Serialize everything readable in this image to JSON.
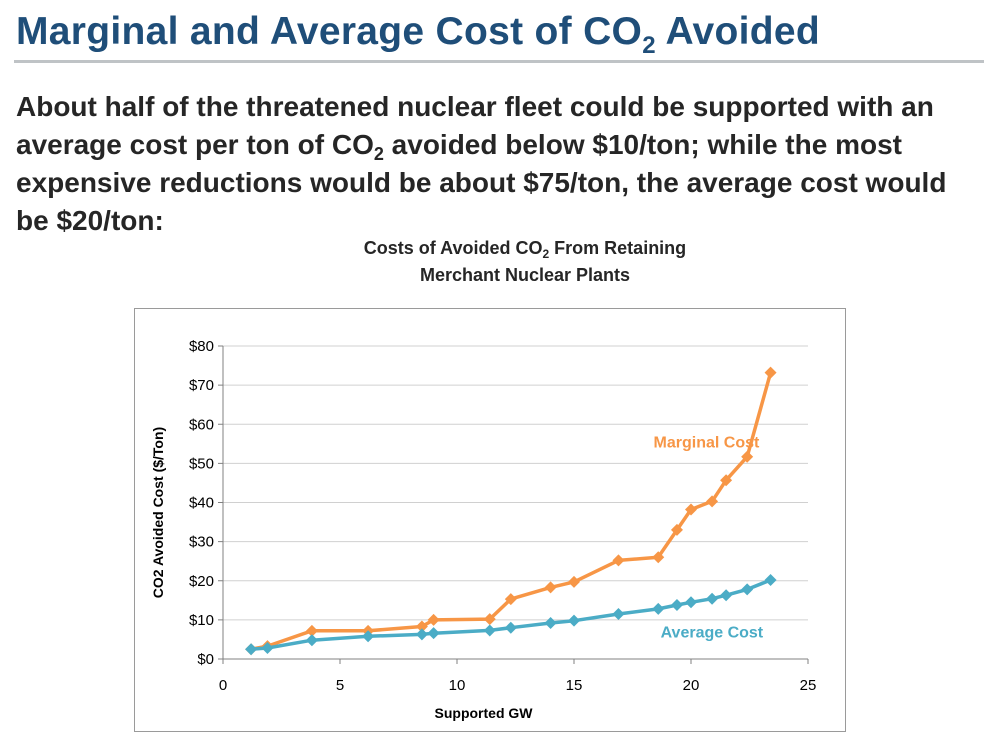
{
  "slide": {
    "title_main": "Marginal and Average Cost of CO",
    "title_sub": "2",
    "title_end": " Avoided",
    "body_part1": "About half of the threatened nuclear fleet could be supported with an average cost per ton of CO",
    "body_sub": "2",
    "body_part2": " avoided below $10/ton;  while the most expensive reductions would be about $75/ton, the average cost would be $20/ton:"
  },
  "chart_data": {
    "type": "line",
    "title_line1_main": "Costs of Avoided CO",
    "title_line1_sub": "2",
    "title_line1_end": " From Retaining",
    "title_line2": "Merchant Nuclear Plants",
    "xlabel": "Supported GW",
    "ylabel": "CO2 Avoided Cost ($/Ton)",
    "xlim": [
      0,
      25
    ],
    "ylim": [
      0,
      80
    ],
    "xticks": [
      0,
      5,
      10,
      15,
      20,
      25
    ],
    "xtick_labels": [
      "0",
      "5",
      "10",
      "15",
      "20",
      "25"
    ],
    "yticks": [
      0,
      10,
      20,
      30,
      40,
      50,
      60,
      70,
      80
    ],
    "ytick_labels": [
      "$0",
      "$10",
      "$20",
      "$30",
      "$40",
      "$50",
      "$60",
      "$70",
      "$80"
    ],
    "grid": "horizontal",
    "series": [
      {
        "name": "Marginal Cost",
        "color": "#f79646",
        "marker": "diamond",
        "x": [
          1.2,
          1.9,
          3.8,
          6.2,
          8.5,
          9.0,
          11.4,
          12.3,
          14.0,
          15.0,
          16.9,
          18.6,
          19.4,
          20.0,
          20.9,
          21.5,
          22.4,
          23.4
        ],
        "y": [
          2.5,
          3.3,
          7.2,
          7.2,
          8.3,
          10.0,
          10.2,
          15.3,
          18.3,
          19.7,
          25.2,
          26.0,
          33.0,
          38.2,
          40.3,
          45.7,
          51.7,
          73.2
        ]
      },
      {
        "name": "Average Cost",
        "color": "#4bacc6",
        "marker": "diamond",
        "x": [
          1.2,
          1.9,
          3.8,
          6.2,
          8.5,
          9.0,
          11.4,
          12.3,
          14.0,
          15.0,
          16.9,
          18.6,
          19.4,
          20.0,
          20.9,
          21.5,
          22.4,
          23.4
        ],
        "y": [
          2.5,
          2.8,
          4.8,
          5.8,
          6.3,
          6.6,
          7.3,
          8.0,
          9.2,
          9.8,
          11.5,
          12.8,
          13.8,
          14.5,
          15.4,
          16.3,
          17.8,
          20.2
        ]
      }
    ],
    "annotations": [
      {
        "text": "Marginal Cost",
        "x": 18.4,
        "y": 54
      },
      {
        "text": "Average Cost",
        "x": 18.7,
        "y": 5.5
      }
    ]
  }
}
